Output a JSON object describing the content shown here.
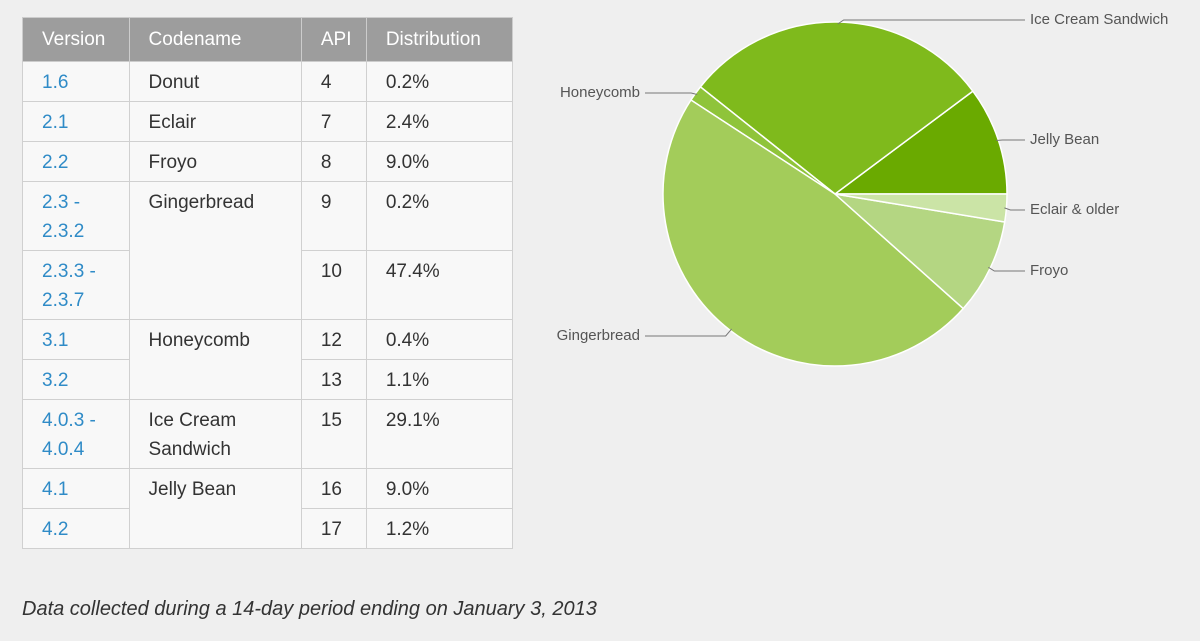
{
  "table": {
    "header": [
      "Version",
      "Codename",
      "API",
      "Distribution"
    ],
    "rows": [
      {
        "version": "1.6",
        "codename": "Donut",
        "api": "4",
        "distribution": "0.2%"
      },
      {
        "version": "2.1",
        "codename": "Eclair",
        "api": "7",
        "distribution": "2.4%"
      },
      {
        "version": "2.2",
        "codename": "Froyo",
        "api": "8",
        "distribution": "9.0%"
      },
      {
        "version": "2.3 -\n2.3.2",
        "codename": "Gingerbread",
        "api": "9",
        "distribution": "0.2%"
      },
      {
        "version": "2.3.3 -\n2.3.7",
        "api": "10",
        "distribution": "47.4%"
      },
      {
        "version": "3.1",
        "codename": "Honeycomb",
        "api": "12",
        "distribution": "0.4%"
      },
      {
        "version": "3.2",
        "api": "13",
        "distribution": "1.1%"
      },
      {
        "version": "4.0.3 -\n4.0.4",
        "codename": "Ice Cream\nSandwich",
        "api": "15",
        "distribution": "29.1%"
      },
      {
        "version": "4.1",
        "codename": "Jelly Bean",
        "api": "16",
        "distribution": "9.0%"
      },
      {
        "version": "4.2",
        "api": "17",
        "distribution": "1.2%"
      }
    ]
  },
  "chart_data": {
    "type": "pie",
    "categories": [
      "Jelly Bean",
      "Ice Cream Sandwich",
      "Honeycomb",
      "Gingerbread",
      "Froyo",
      "Eclair & older"
    ],
    "values": [
      10.2,
      29.1,
      1.5,
      47.6,
      9.0,
      2.6
    ],
    "colors": [
      "#6aaa00",
      "#7fba1c",
      "#8fc43a",
      "#a3cc5a",
      "#b4d682",
      "#cbe4a6"
    ]
  },
  "footnote": "Data collected during a 14-day period ending on January 3, 2013"
}
